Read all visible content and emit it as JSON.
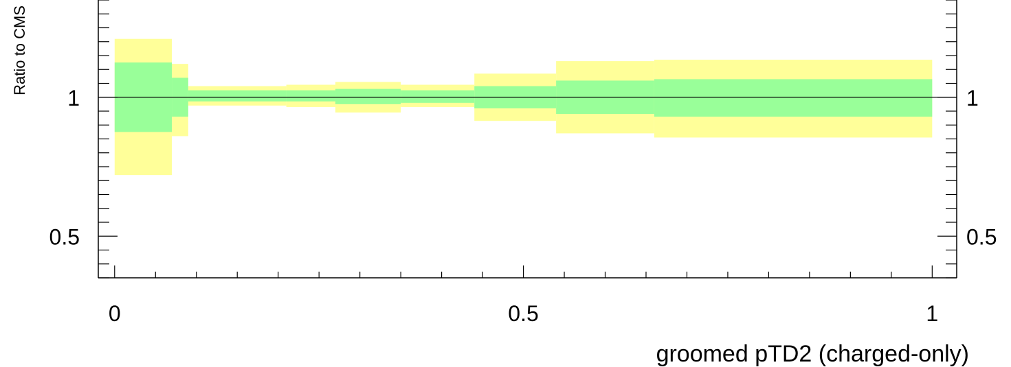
{
  "chart_data": {
    "type": "area",
    "title": "",
    "xlabel": "groomed pTD2 (charged-only)",
    "ylabel": "Ratio to CMS",
    "xlim": [
      -0.02,
      1.03
    ],
    "ylim": [
      0.35,
      1.35
    ],
    "x_major_ticks": [
      0,
      0.5,
      1
    ],
    "x_tick_labels": [
      "0",
      "0.5",
      "1"
    ],
    "y_major_ticks": [
      0.5,
      1
    ],
    "y_tick_labels": [
      "0.5",
      "1"
    ],
    "x_minor_step": 0.05,
    "y_minor_step": 0.05,
    "reference_line": 1.0,
    "grid": false,
    "colors": {
      "outer_band": "#ffff99",
      "inner_band": "#99ff99",
      "axes": "#000000",
      "reference_line": "#000000"
    },
    "series": [
      {
        "band": "outer",
        "bins": [
          {
            "x0": 0.0,
            "x1": 0.07,
            "low": 0.72,
            "high": 1.21
          },
          {
            "x0": 0.07,
            "x1": 0.09,
            "low": 0.86,
            "high": 1.12
          },
          {
            "x0": 0.09,
            "x1": 0.21,
            "low": 0.97,
            "high": 1.04
          },
          {
            "x0": 0.21,
            "x1": 0.27,
            "low": 0.965,
            "high": 1.045
          },
          {
            "x0": 0.27,
            "x1": 0.35,
            "low": 0.945,
            "high": 1.055
          },
          {
            "x0": 0.35,
            "x1": 0.44,
            "low": 0.965,
            "high": 1.045
          },
          {
            "x0": 0.44,
            "x1": 0.54,
            "low": 0.915,
            "high": 1.085
          },
          {
            "x0": 0.54,
            "x1": 0.66,
            "low": 0.87,
            "high": 1.13
          },
          {
            "x0": 0.66,
            "x1": 1.0,
            "low": 0.855,
            "high": 1.135
          }
        ]
      },
      {
        "band": "inner",
        "bins": [
          {
            "x0": 0.0,
            "x1": 0.07,
            "low": 0.875,
            "high": 1.125
          },
          {
            "x0": 0.07,
            "x1": 0.09,
            "low": 0.93,
            "high": 1.07
          },
          {
            "x0": 0.09,
            "x1": 0.21,
            "low": 0.985,
            "high": 1.025
          },
          {
            "x0": 0.21,
            "x1": 0.27,
            "low": 0.985,
            "high": 1.025
          },
          {
            "x0": 0.27,
            "x1": 0.35,
            "low": 0.975,
            "high": 1.03
          },
          {
            "x0": 0.35,
            "x1": 0.44,
            "low": 0.98,
            "high": 1.025
          },
          {
            "x0": 0.44,
            "x1": 0.54,
            "low": 0.96,
            "high": 1.04
          },
          {
            "x0": 0.54,
            "x1": 0.66,
            "low": 0.94,
            "high": 1.06
          },
          {
            "x0": 0.66,
            "x1": 1.0,
            "low": 0.93,
            "high": 1.065
          }
        ]
      }
    ]
  }
}
